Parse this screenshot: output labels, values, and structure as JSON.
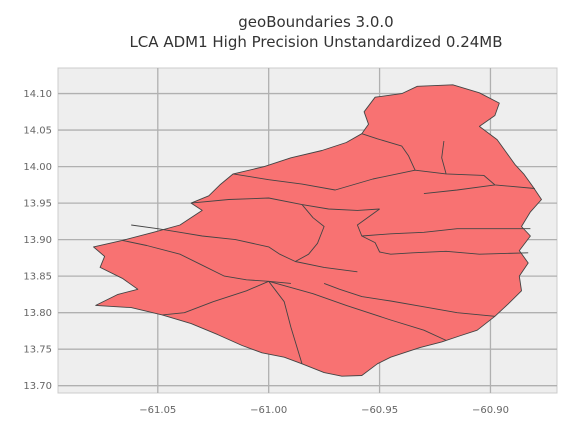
{
  "title": {
    "line1": "geoBoundaries 3.0.0",
    "line2": "LCA ADM1 High Precision Unstandardized 0.24MB"
  },
  "colors": {
    "plot_bg": "#eeeeee",
    "grid": "#b0b0b0",
    "fill": "#f87272",
    "edge": "#444444"
  },
  "chart_data": {
    "type": "map",
    "x_range": [
      -61.095,
      -60.87
    ],
    "y_range": [
      13.69,
      14.135
    ],
    "x_ticks": [
      {
        "value": -61.05,
        "label": "−61.05"
      },
      {
        "value": -61.0,
        "label": "−61.00"
      },
      {
        "value": -60.95,
        "label": "−60.95"
      },
      {
        "value": -60.9,
        "label": "−60.90"
      }
    ],
    "y_ticks": [
      {
        "value": 13.7,
        "label": "13.70"
      },
      {
        "value": 13.75,
        "label": "13.75"
      },
      {
        "value": 13.8,
        "label": "13.80"
      },
      {
        "value": 13.85,
        "label": "13.85"
      },
      {
        "value": 13.9,
        "label": "13.90"
      },
      {
        "value": 13.95,
        "label": "13.95"
      },
      {
        "value": 14.0,
        "label": "14.00"
      },
      {
        "value": 14.05,
        "label": "14.05"
      },
      {
        "value": 14.1,
        "label": "14.10"
      }
    ],
    "grid": true,
    "outline": [
      [
        -60.933,
        14.11
      ],
      [
        -60.917,
        14.112
      ],
      [
        -60.905,
        14.101
      ],
      [
        -60.896,
        14.087
      ],
      [
        -60.898,
        14.07
      ],
      [
        -60.905,
        14.055
      ],
      [
        -60.897,
        14.037
      ],
      [
        -60.893,
        14.02
      ],
      [
        -60.889,
        14.003
      ],
      [
        -60.885,
        13.99
      ],
      [
        -60.881,
        13.973
      ],
      [
        -60.877,
        13.955
      ],
      [
        -60.882,
        13.938
      ],
      [
        -60.886,
        13.918
      ],
      [
        -60.882,
        13.905
      ],
      [
        -60.887,
        13.885
      ],
      [
        -60.883,
        13.868
      ],
      [
        -60.887,
        13.85
      ],
      [
        -60.886,
        13.83
      ],
      [
        -60.892,
        13.812
      ],
      [
        -60.898,
        13.795
      ],
      [
        -60.906,
        13.776
      ],
      [
        -60.914,
        13.768
      ],
      [
        -60.922,
        13.76
      ],
      [
        -60.932,
        13.752
      ],
      [
        -60.945,
        13.739
      ],
      [
        -60.951,
        13.73
      ],
      [
        -60.958,
        13.714
      ],
      [
        -60.967,
        13.713
      ],
      [
        -60.975,
        13.718
      ],
      [
        -60.985,
        13.73
      ],
      [
        -60.993,
        13.739
      ],
      [
        -61.003,
        13.745
      ],
      [
        -61.012,
        13.755
      ],
      [
        -61.023,
        13.77
      ],
      [
        -61.035,
        13.785
      ],
      [
        -61.048,
        13.797
      ],
      [
        -61.062,
        13.807
      ],
      [
        -61.078,
        13.81
      ],
      [
        -61.068,
        13.825
      ],
      [
        -61.059,
        13.832
      ],
      [
        -61.066,
        13.847
      ],
      [
        -61.076,
        13.862
      ],
      [
        -61.074,
        13.877
      ],
      [
        -61.079,
        13.89
      ],
      [
        -61.066,
        13.899
      ],
      [
        -61.052,
        13.91
      ],
      [
        -61.04,
        13.92
      ],
      [
        -61.03,
        13.94
      ],
      [
        -61.035,
        13.95
      ],
      [
        -61.027,
        13.96
      ],
      [
        -61.022,
        13.975
      ],
      [
        -61.016,
        13.99
      ],
      [
        -61.002,
        14.0
      ],
      [
        -60.99,
        14.012
      ],
      [
        -60.976,
        14.022
      ],
      [
        -60.965,
        14.033
      ],
      [
        -60.958,
        14.045
      ],
      [
        -60.955,
        14.058
      ],
      [
        -60.957,
        14.075
      ],
      [
        -60.952,
        14.095
      ],
      [
        -60.94,
        14.1
      ],
      [
        -60.933,
        14.11
      ]
    ],
    "borders": [
      [
        [
          -60.958,
          14.045
        ],
        [
          -60.951,
          14.038
        ],
        [
          -60.94,
          14.028
        ],
        [
          -60.937,
          14.015
        ],
        [
          -60.934,
          13.995
        ]
      ],
      [
        [
          -60.921,
          14.035
        ],
        [
          -60.922,
          14.012
        ],
        [
          -60.92,
          13.99
        ]
      ],
      [
        [
          -61.016,
          13.99
        ],
        [
          -61.0,
          13.982
        ],
        [
          -60.985,
          13.976
        ],
        [
          -60.97,
          13.968
        ],
        [
          -60.953,
          13.983
        ],
        [
          -60.934,
          13.995
        ],
        [
          -60.92,
          13.99
        ],
        [
          -60.903,
          13.988
        ],
        [
          -60.898,
          13.975
        ],
        [
          -60.88,
          13.97
        ]
      ],
      [
        [
          -61.035,
          13.95
        ],
        [
          -61.018,
          13.955
        ],
        [
          -61.0,
          13.957
        ],
        [
          -60.985,
          13.948
        ],
        [
          -60.973,
          13.942
        ],
        [
          -60.96,
          13.94
        ],
        [
          -60.95,
          13.942
        ]
      ],
      [
        [
          -60.93,
          13.963
        ],
        [
          -60.915,
          13.968
        ],
        [
          -60.898,
          13.975
        ]
      ],
      [
        [
          -61.062,
          13.92
        ],
        [
          -61.05,
          13.915
        ],
        [
          -61.04,
          13.91
        ],
        [
          -61.03,
          13.905
        ],
        [
          -61.015,
          13.9
        ],
        [
          -61.0,
          13.89
        ],
        [
          -60.995,
          13.88
        ],
        [
          -60.988,
          13.87
        ],
        [
          -60.975,
          13.862
        ],
        [
          -60.96,
          13.856
        ]
      ],
      [
        [
          -60.985,
          13.948
        ],
        [
          -60.98,
          13.93
        ],
        [
          -60.975,
          13.918
        ],
        [
          -60.978,
          13.895
        ],
        [
          -60.982,
          13.88
        ],
        [
          -60.988,
          13.87
        ]
      ],
      [
        [
          -60.95,
          13.942
        ],
        [
          -60.96,
          13.92
        ],
        [
          -60.958,
          13.905
        ],
        [
          -60.952,
          13.896
        ],
        [
          -60.95,
          13.883
        ],
        [
          -60.945,
          13.88
        ],
        [
          -60.935,
          13.882
        ],
        [
          -60.92,
          13.884
        ],
        [
          -60.905,
          13.88
        ],
        [
          -60.883,
          13.882
        ]
      ],
      [
        [
          -60.958,
          13.905
        ],
        [
          -60.945,
          13.908
        ],
        [
          -60.93,
          13.91
        ],
        [
          -60.915,
          13.915
        ],
        [
          -60.9,
          13.915
        ],
        [
          -60.882,
          13.915
        ]
      ],
      [
        [
          -61.066,
          13.899
        ],
        [
          -61.055,
          13.892
        ],
        [
          -61.04,
          13.88
        ],
        [
          -61.03,
          13.865
        ],
        [
          -61.02,
          13.85
        ],
        [
          -61.01,
          13.845
        ],
        [
          -61.0,
          13.843
        ],
        [
          -60.99,
          13.84
        ]
      ],
      [
        [
          -61.0,
          13.843
        ],
        [
          -61.01,
          13.83
        ],
        [
          -61.025,
          13.815
        ],
        [
          -61.038,
          13.8
        ],
        [
          -61.048,
          13.797
        ]
      ],
      [
        [
          -61.0,
          13.843
        ],
        [
          -60.993,
          13.815
        ],
        [
          -60.99,
          13.78
        ],
        [
          -60.985,
          13.73
        ]
      ],
      [
        [
          -61.0,
          13.843
        ],
        [
          -60.98,
          13.826
        ],
        [
          -60.965,
          13.81
        ],
        [
          -60.945,
          13.79
        ],
        [
          -60.93,
          13.776
        ],
        [
          -60.92,
          13.762
        ]
      ],
      [
        [
          -60.975,
          13.84
        ],
        [
          -60.968,
          13.832
        ],
        [
          -60.958,
          13.822
        ],
        [
          -60.945,
          13.816
        ],
        [
          -60.93,
          13.808
        ],
        [
          -60.915,
          13.8
        ],
        [
          -60.898,
          13.795
        ]
      ]
    ]
  }
}
